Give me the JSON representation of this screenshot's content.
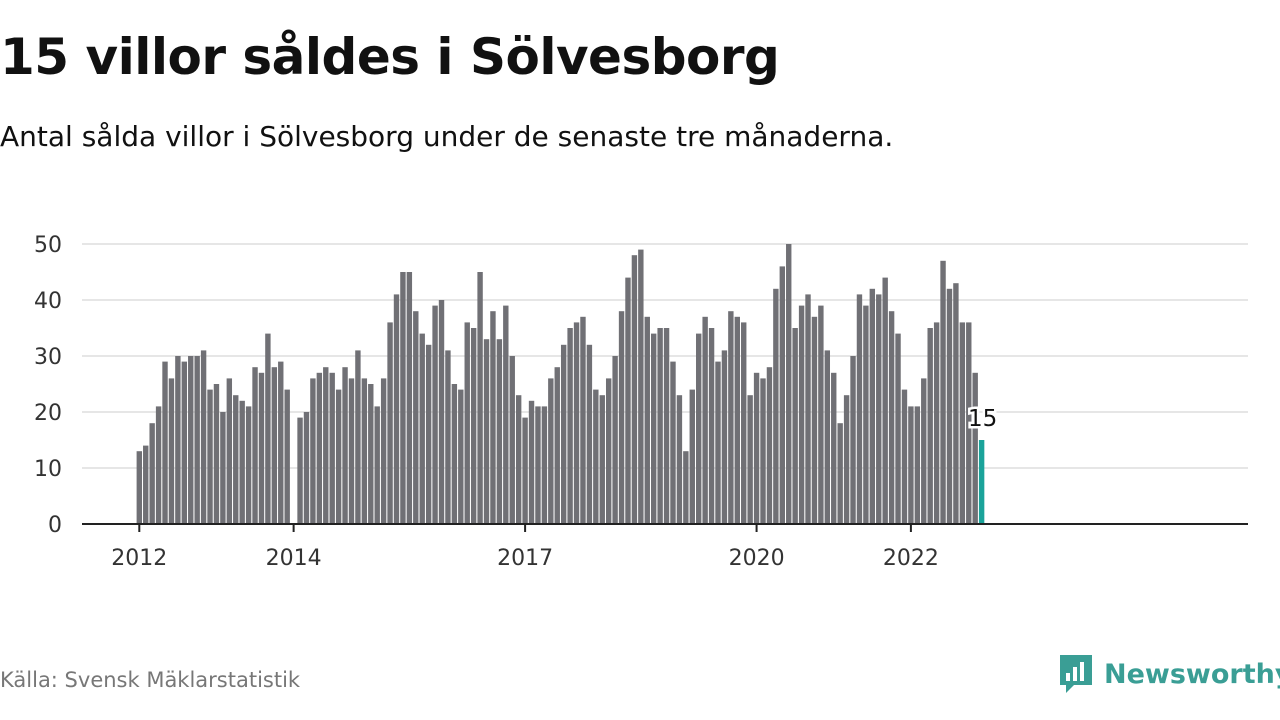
{
  "header": {
    "title": "15 villor såldes i Sölvesborg",
    "subtitle": "Antal sålda villor i Sölvesborg under de senaste tre månaderna."
  },
  "footer": {
    "source": "Källa: Svensk Mäklarstatistik",
    "brand_name": "Newsworthy",
    "brand_icon": "newsworthy-logo-icon"
  },
  "colors": {
    "bar": "#707075",
    "highlight": "#1aa39a",
    "grid": "#dddddd",
    "axis": "#222222",
    "brand": "#3a9e95"
  },
  "chart_data": {
    "type": "bar",
    "title": "15 villor såldes i Sölvesborg",
    "subtitle": "Antal sålda villor i Sölvesborg under de senaste tre månaderna.",
    "xlabel": "",
    "ylabel": "",
    "ylim": [
      0,
      50
    ],
    "yticks": [
      0,
      10,
      20,
      30,
      40,
      50
    ],
    "grid": true,
    "x_tick_labels": [
      "2012",
      "2014",
      "2017",
      "2020",
      "2022"
    ],
    "x_tick_months": [
      "2012-01",
      "2014-01",
      "2017-01",
      "2020-01",
      "2022-01"
    ],
    "start_month": "2012-01",
    "values": [
      13,
      14,
      18,
      21,
      29,
      26,
      30,
      29,
      30,
      30,
      31,
      24,
      25,
      20,
      26,
      23,
      22,
      21,
      28,
      27,
      34,
      28,
      29,
      24,
      null,
      19,
      20,
      26,
      27,
      28,
      27,
      24,
      28,
      26,
      31,
      26,
      25,
      21,
      26,
      36,
      41,
      45,
      45,
      38,
      34,
      32,
      39,
      40,
      31,
      25,
      24,
      36,
      35,
      45,
      33,
      38,
      33,
      39,
      30,
      23,
      19,
      22,
      21,
      21,
      26,
      28,
      32,
      35,
      36,
      37,
      32,
      24,
      23,
      26,
      30,
      38,
      44,
      48,
      49,
      37,
      34,
      35,
      35,
      29,
      23,
      13,
      24,
      34,
      37,
      35,
      29,
      31,
      38,
      37,
      36,
      23,
      27,
      26,
      28,
      42,
      46,
      50,
      35,
      39,
      41,
      37,
      39,
      31,
      27,
      18,
      23,
      30,
      41,
      39,
      42,
      41,
      44,
      38,
      34,
      24,
      21,
      21,
      26,
      35,
      36,
      47,
      42,
      43,
      36,
      36,
      27,
      15
    ],
    "highlight_index": 131,
    "highlight_label": "15"
  }
}
